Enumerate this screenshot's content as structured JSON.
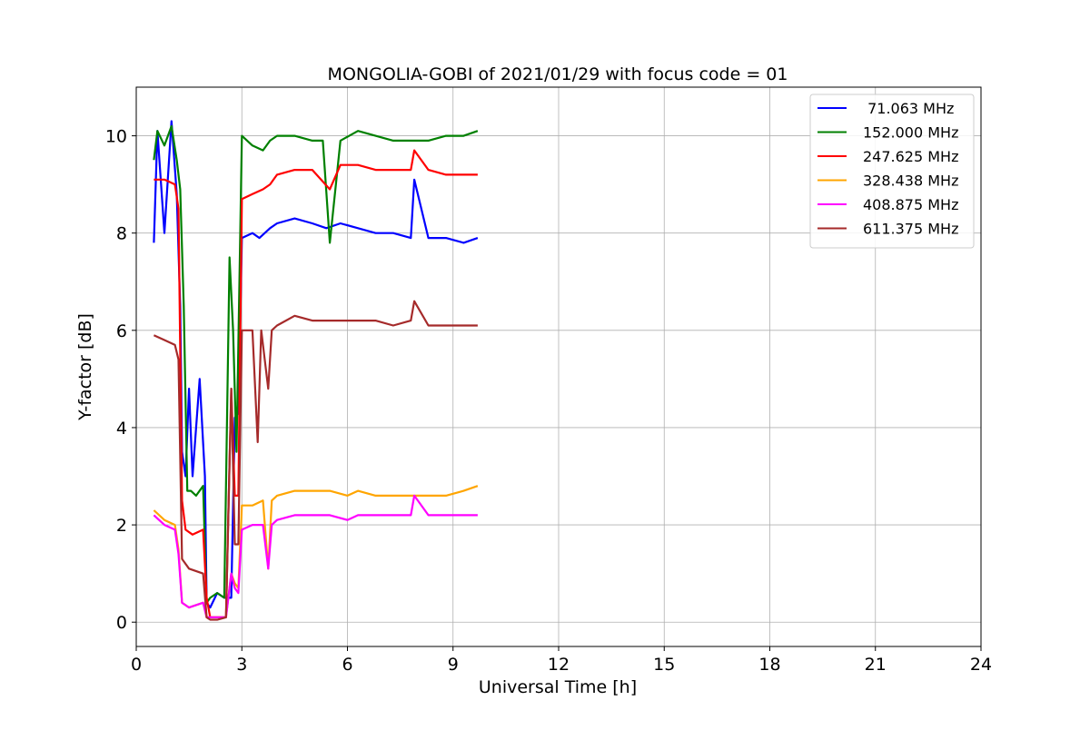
{
  "chart_data": {
    "type": "line",
    "title": "MONGOLIA-GOBI of 2021/01/29 with focus code = 01",
    "xlabel": "Universal Time [h]",
    "ylabel": "Y-factor [dB]",
    "xlim": [
      0,
      24
    ],
    "ylim": [
      -0.5,
      11
    ],
    "xticks": [
      0,
      3,
      6,
      9,
      12,
      15,
      18,
      21,
      24
    ],
    "yticks": [
      0,
      2,
      4,
      6,
      8,
      10
    ],
    "grid": true,
    "legend_position": "top-right",
    "series": [
      {
        "name": " 71.063 MHz",
        "color": "#0000ff",
        "x": [
          0.5,
          0.6,
          0.8,
          1.0,
          1.15,
          1.25,
          1.3,
          1.4,
          1.5,
          1.6,
          1.8,
          1.95,
          2.0,
          2.1,
          2.3,
          2.5,
          2.7,
          2.8,
          2.9,
          3.0,
          3.3,
          3.5,
          3.8,
          4.0,
          4.5,
          5.0,
          5.4,
          5.8,
          6.3,
          6.8,
          7.3,
          7.8,
          7.9,
          8.3,
          8.8,
          9.3,
          9.7
        ],
        "y": [
          7.8,
          10.1,
          8.0,
          10.3,
          8.8,
          6.5,
          3.5,
          3.0,
          4.8,
          3.0,
          5.0,
          3.0,
          0.4,
          0.3,
          0.6,
          0.5,
          0.5,
          4.2,
          4.3,
          7.9,
          8.0,
          7.9,
          8.1,
          8.2,
          8.3,
          8.2,
          8.1,
          8.2,
          8.1,
          8.0,
          8.0,
          7.9,
          9.1,
          7.9,
          7.9,
          7.8,
          7.9
        ]
      },
      {
        "name": "152.000 MHz",
        "color": "#008000",
        "x": [
          0.5,
          0.6,
          0.8,
          1.0,
          1.15,
          1.25,
          1.35,
          1.45,
          1.55,
          1.7,
          1.9,
          2.0,
          2.1,
          2.3,
          2.5,
          2.65,
          2.75,
          2.85,
          3.0,
          3.3,
          3.6,
          3.8,
          4.0,
          4.5,
          5.0,
          5.3,
          5.5,
          5.8,
          6.3,
          6.8,
          7.3,
          7.8,
          8.3,
          8.8,
          9.3,
          9.7
        ],
        "y": [
          9.5,
          10.1,
          9.8,
          10.2,
          9.5,
          8.9,
          6.5,
          2.7,
          2.7,
          2.6,
          2.8,
          0.4,
          0.5,
          0.6,
          0.5,
          7.5,
          6.0,
          3.5,
          10.0,
          9.8,
          9.7,
          9.9,
          10.0,
          10.0,
          9.9,
          9.9,
          7.8,
          9.9,
          10.1,
          10.0,
          9.9,
          9.9,
          9.9,
          10.0,
          10.0,
          10.1
        ]
      },
      {
        "name": "247.625 MHz",
        "color": "#ff0000",
        "x": [
          0.5,
          0.8,
          1.1,
          1.2,
          1.3,
          1.4,
          1.6,
          1.9,
          2.0,
          2.1,
          2.3,
          2.55,
          2.7,
          2.8,
          2.9,
          3.0,
          3.3,
          3.6,
          3.8,
          4.0,
          4.5,
          5.0,
          5.5,
          5.8,
          6.3,
          6.8,
          7.3,
          7.8,
          7.9,
          8.3,
          8.8,
          9.3,
          9.7
        ],
        "y": [
          9.1,
          9.1,
          9.0,
          8.5,
          2.5,
          1.9,
          1.8,
          1.9,
          0.5,
          0.1,
          0.1,
          0.1,
          4.8,
          2.6,
          2.6,
          8.7,
          8.8,
          8.9,
          9.0,
          9.2,
          9.3,
          9.3,
          8.9,
          9.4,
          9.4,
          9.3,
          9.3,
          9.3,
          9.7,
          9.3,
          9.2,
          9.2,
          9.2
        ]
      },
      {
        "name": "328.438 MHz",
        "color": "#ffa500",
        "x": [
          0.5,
          0.8,
          1.1,
          1.2,
          1.3,
          1.5,
          1.9,
          2.0,
          2.1,
          2.3,
          2.55,
          2.7,
          2.8,
          2.9,
          3.0,
          3.3,
          3.6,
          3.75,
          3.85,
          4.0,
          4.5,
          5.0,
          5.5,
          6.0,
          6.3,
          6.8,
          7.3,
          7.8,
          8.3,
          8.8,
          9.3,
          9.7
        ],
        "y": [
          2.3,
          2.1,
          2.0,
          1.5,
          0.4,
          0.3,
          0.4,
          0.1,
          0.1,
          0.1,
          0.1,
          1.0,
          0.8,
          0.7,
          2.4,
          2.4,
          2.5,
          1.1,
          2.5,
          2.6,
          2.7,
          2.7,
          2.7,
          2.6,
          2.7,
          2.6,
          2.6,
          2.6,
          2.6,
          2.6,
          2.7,
          2.8
        ]
      },
      {
        "name": "408.875 MHz",
        "color": "#ff00ff",
        "x": [
          0.5,
          0.8,
          1.1,
          1.2,
          1.3,
          1.5,
          1.9,
          2.0,
          2.1,
          2.3,
          2.55,
          2.7,
          2.8,
          2.9,
          3.0,
          3.3,
          3.6,
          3.75,
          3.85,
          4.0,
          4.5,
          5.0,
          5.5,
          6.0,
          6.3,
          6.8,
          7.3,
          7.8,
          7.9,
          8.3,
          8.8,
          9.3,
          9.7
        ],
        "y": [
          2.2,
          2.0,
          1.9,
          1.4,
          0.4,
          0.3,
          0.4,
          0.1,
          0.1,
          0.1,
          0.1,
          1.0,
          0.7,
          0.6,
          1.9,
          2.0,
          2.0,
          1.1,
          2.0,
          2.1,
          2.2,
          2.2,
          2.2,
          2.1,
          2.2,
          2.2,
          2.2,
          2.2,
          2.6,
          2.2,
          2.2,
          2.2,
          2.2
        ]
      },
      {
        "name": "611.375 MHz",
        "color": "#a52a2a",
        "x": [
          0.5,
          0.8,
          1.1,
          1.2,
          1.3,
          1.5,
          1.9,
          2.0,
          2.1,
          2.3,
          2.55,
          2.7,
          2.8,
          2.9,
          3.0,
          3.3,
          3.45,
          3.55,
          3.75,
          3.85,
          4.0,
          4.5,
          5.0,
          5.5,
          6.0,
          6.3,
          6.8,
          7.3,
          7.8,
          7.9,
          8.3,
          8.8,
          9.3,
          9.7
        ],
        "y": [
          5.9,
          5.8,
          5.7,
          5.4,
          1.3,
          1.1,
          1.0,
          0.1,
          0.05,
          0.05,
          0.1,
          4.8,
          1.6,
          1.6,
          6.0,
          6.0,
          3.7,
          6.0,
          4.8,
          6.0,
          6.1,
          6.3,
          6.2,
          6.2,
          6.2,
          6.2,
          6.2,
          6.1,
          6.2,
          6.6,
          6.1,
          6.1,
          6.1,
          6.1
        ]
      }
    ]
  }
}
